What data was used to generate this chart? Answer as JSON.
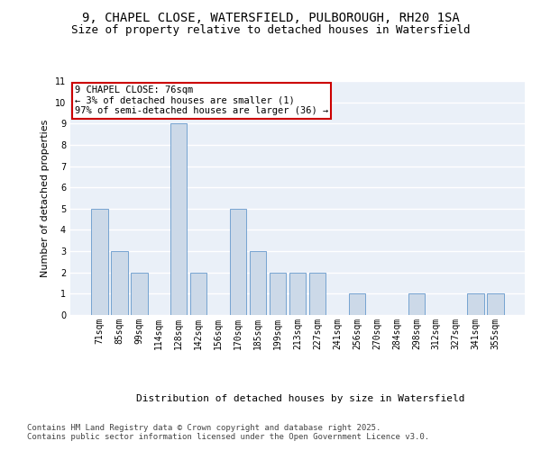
{
  "title1": "9, CHAPEL CLOSE, WATERSFIELD, PULBOROUGH, RH20 1SA",
  "title2": "Size of property relative to detached houses in Watersfield",
  "xlabel": "Distribution of detached houses by size in Watersfield",
  "ylabel": "Number of detached properties",
  "categories": [
    "71sqm",
    "85sqm",
    "99sqm",
    "114sqm",
    "128sqm",
    "142sqm",
    "156sqm",
    "170sqm",
    "185sqm",
    "199sqm",
    "213sqm",
    "227sqm",
    "241sqm",
    "256sqm",
    "270sqm",
    "284sqm",
    "298sqm",
    "312sqm",
    "327sqm",
    "341sqm",
    "355sqm"
  ],
  "values": [
    5,
    3,
    2,
    0,
    9,
    2,
    0,
    5,
    3,
    2,
    2,
    2,
    0,
    1,
    0,
    0,
    1,
    0,
    0,
    1,
    1
  ],
  "bar_color": "#ccd9e8",
  "bar_edge_color": "#6699cc",
  "annotation_text": "9 CHAPEL CLOSE: 76sqm\n← 3% of detached houses are smaller (1)\n97% of semi-detached houses are larger (36) →",
  "annotation_box_color": "#ffffff",
  "annotation_box_edge": "#cc0000",
  "ylim": [
    0,
    11
  ],
  "yticks": [
    0,
    1,
    2,
    3,
    4,
    5,
    6,
    7,
    8,
    9,
    10,
    11
  ],
  "background_color": "#eaf0f8",
  "grid_color": "#ffffff",
  "footer": "Contains HM Land Registry data © Crown copyright and database right 2025.\nContains public sector information licensed under the Open Government Licence v3.0.",
  "title_fontsize": 10,
  "subtitle_fontsize": 9,
  "axis_label_fontsize": 8,
  "tick_fontsize": 7,
  "annotation_fontsize": 7.5,
  "footer_fontsize": 6.5
}
